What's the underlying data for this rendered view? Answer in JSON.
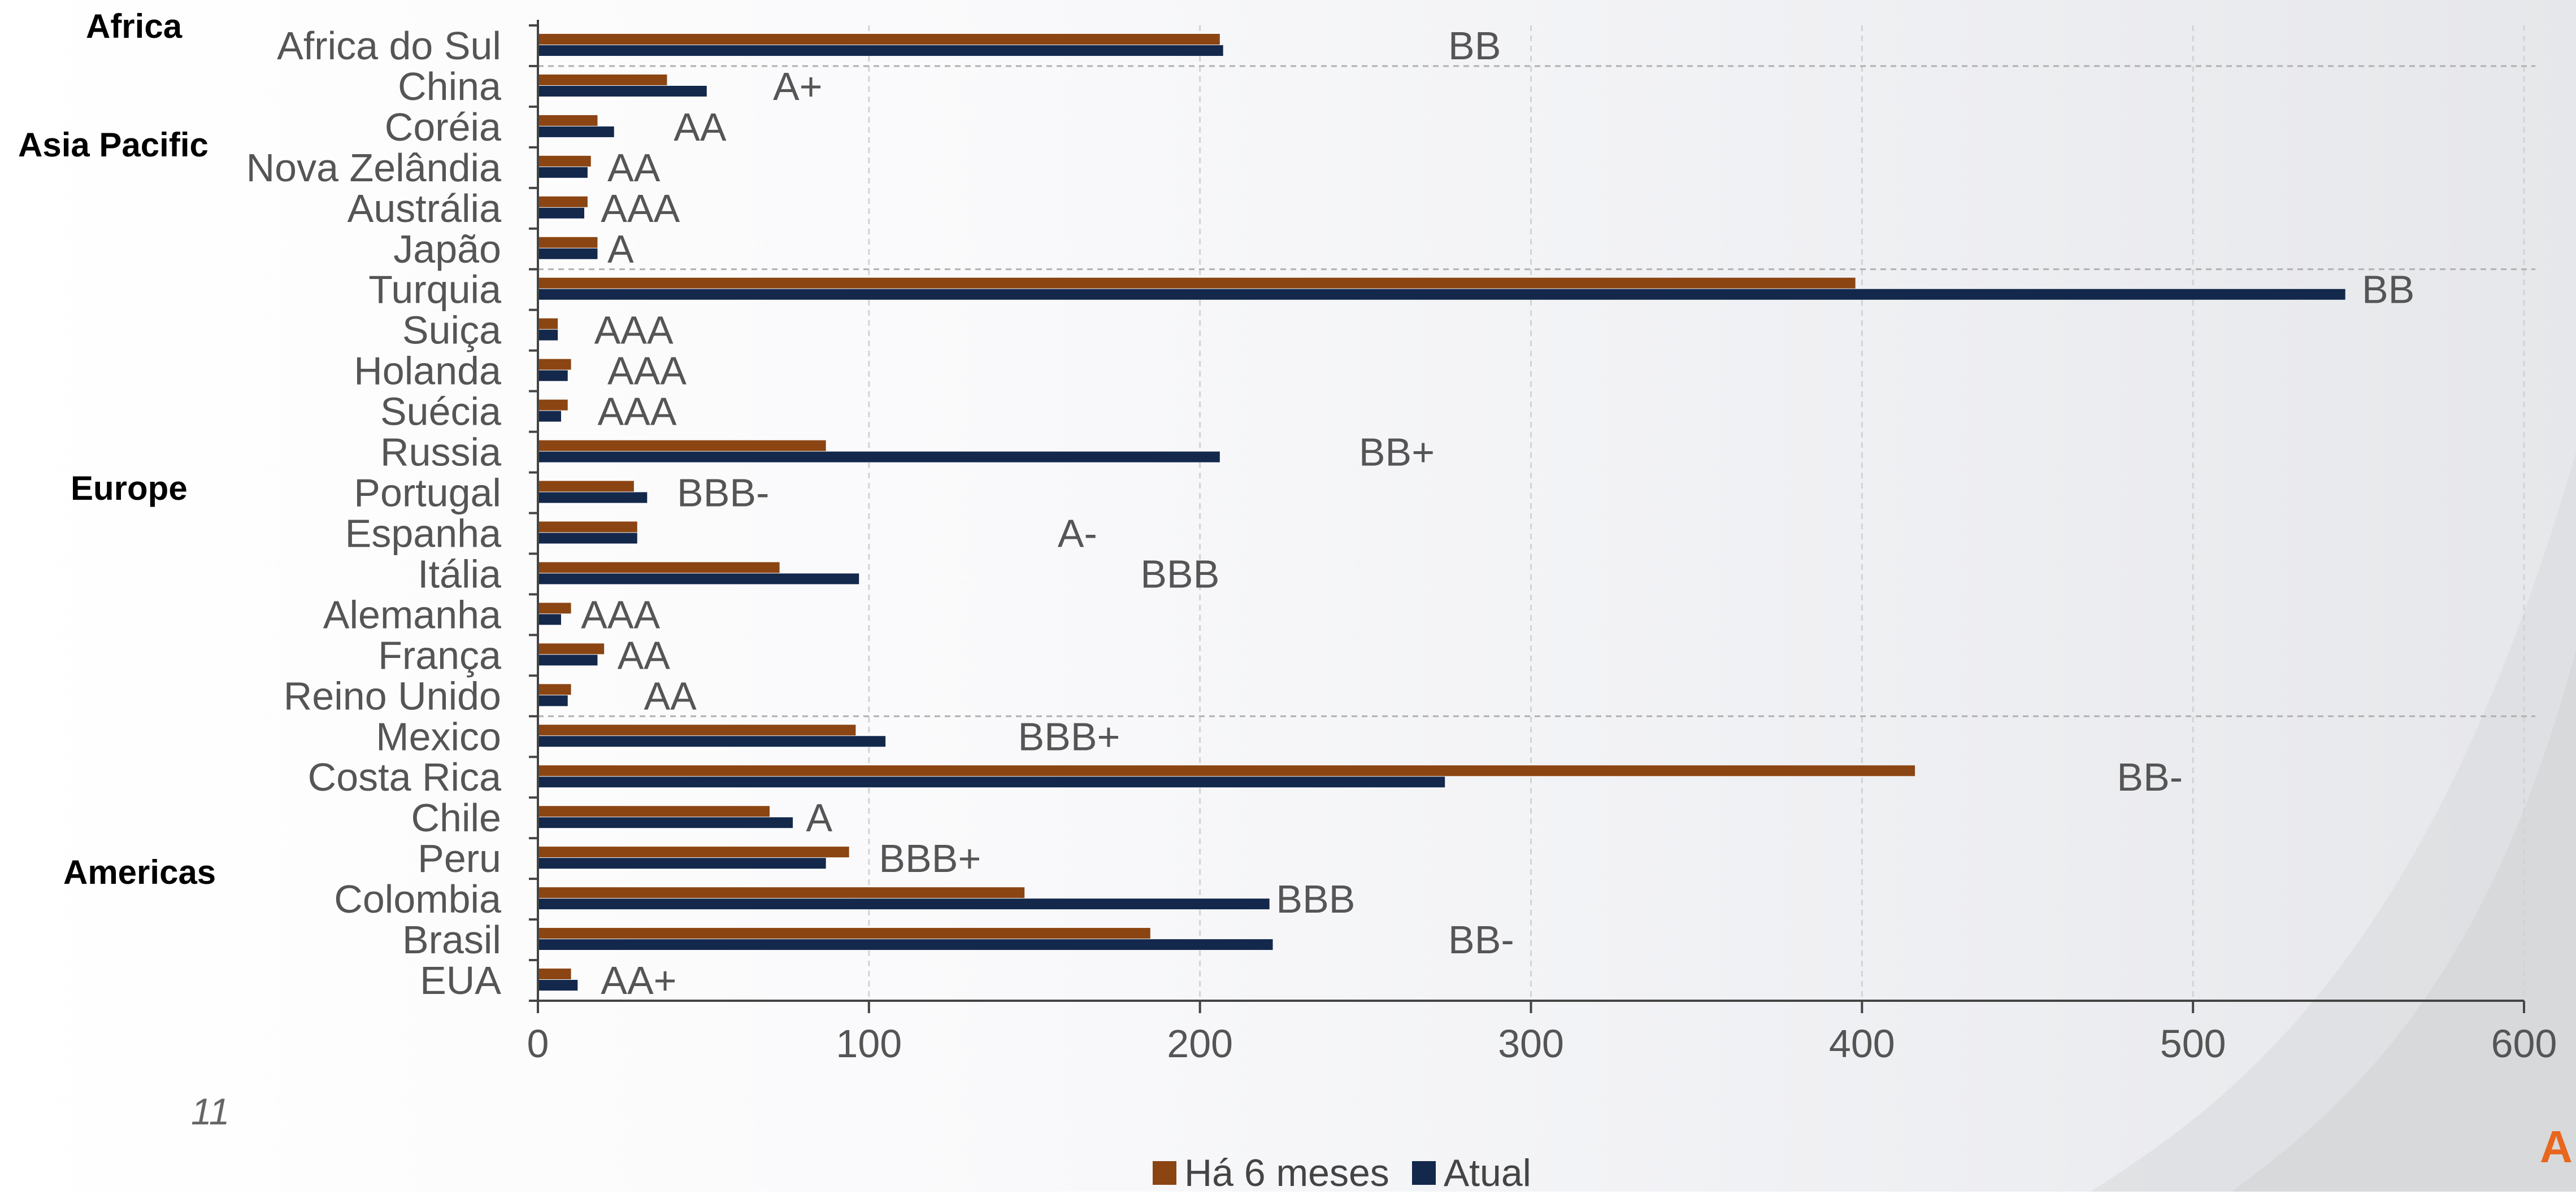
{
  "page_number": "11",
  "corner_mark": "A",
  "colors": {
    "series_before": "#8b4513",
    "series_current": "#13284b",
    "grid": "#d3d3d3",
    "axis": "#444444",
    "text": "#555555"
  },
  "regions": [
    {
      "label": "Africa"
    },
    {
      "label": "Asia Pacific"
    },
    {
      "label": "Europe"
    },
    {
      "label": "Americas"
    }
  ],
  "chart_data": {
    "type": "bar",
    "orientation": "horizontal",
    "categories": [
      "Africa do Sul",
      "China",
      "Coréia",
      "Nova Zelândia",
      "Austrália",
      "Japão",
      "Turquia",
      "Suiça",
      "Holanda",
      "Suécia",
      "Russia",
      "Portugal",
      "Espanha",
      "Itália",
      "Alemanha",
      "França",
      "Reino Unido",
      "Mexico",
      "Costa Rica",
      "Chile",
      "Peru",
      "Colombia",
      "Brasil",
      "EUA"
    ],
    "series": [
      {
        "name": "Há 6 meses",
        "color": "#8b4513",
        "values": [
          206,
          39,
          18,
          16,
          15,
          18,
          398,
          6,
          10,
          9,
          87,
          29,
          30,
          73,
          10,
          20,
          10,
          96,
          416,
          70,
          94,
          147,
          185,
          10
        ]
      },
      {
        "name": "Atual",
        "color": "#13284b",
        "values": [
          207,
          51,
          23,
          15,
          14,
          18,
          546,
          6,
          9,
          7,
          206,
          33,
          30,
          97,
          7,
          18,
          9,
          105,
          274,
          77,
          87,
          221,
          222,
          12
        ]
      }
    ],
    "ratings": [
      {
        "text": "BB",
        "x": 275
      },
      {
        "text": "A+",
        "x": 71
      },
      {
        "text": "AA",
        "x": 41
      },
      {
        "text": "AA",
        "x": 21
      },
      {
        "text": "AAA",
        "x": 19
      },
      {
        "text": "A",
        "x": 21
      },
      {
        "text": "BB",
        "x": 551
      },
      {
        "text": "AAA",
        "x": 17
      },
      {
        "text": "AAA",
        "x": 21
      },
      {
        "text": "AAA",
        "x": 18
      },
      {
        "text": "BB+",
        "x": 248
      },
      {
        "text": "BBB-",
        "x": 42
      },
      {
        "text": "A-",
        "x": 157
      },
      {
        "text": "BBB",
        "x": 182
      },
      {
        "text": "AAA",
        "x": 13
      },
      {
        "text": "AA",
        "x": 24
      },
      {
        "text": "AA",
        "x": 32
      },
      {
        "text": "BBB+",
        "x": 145
      },
      {
        "text": "BB-",
        "x": 477
      },
      {
        "text": "A",
        "x": 81
      },
      {
        "text": "BBB+",
        "x": 103
      },
      {
        "text": "BBB",
        "x": 223
      },
      {
        "text": "BB-",
        "x": 275
      },
      {
        "text": "AA+",
        "x": 19
      }
    ],
    "xlim": [
      0,
      600
    ],
    "xticks": [
      "0",
      "100",
      "200",
      "300",
      "400",
      "500",
      "600"
    ],
    "grid": true,
    "legend_position": "bottom",
    "xlabel": "",
    "ylabel": ""
  }
}
